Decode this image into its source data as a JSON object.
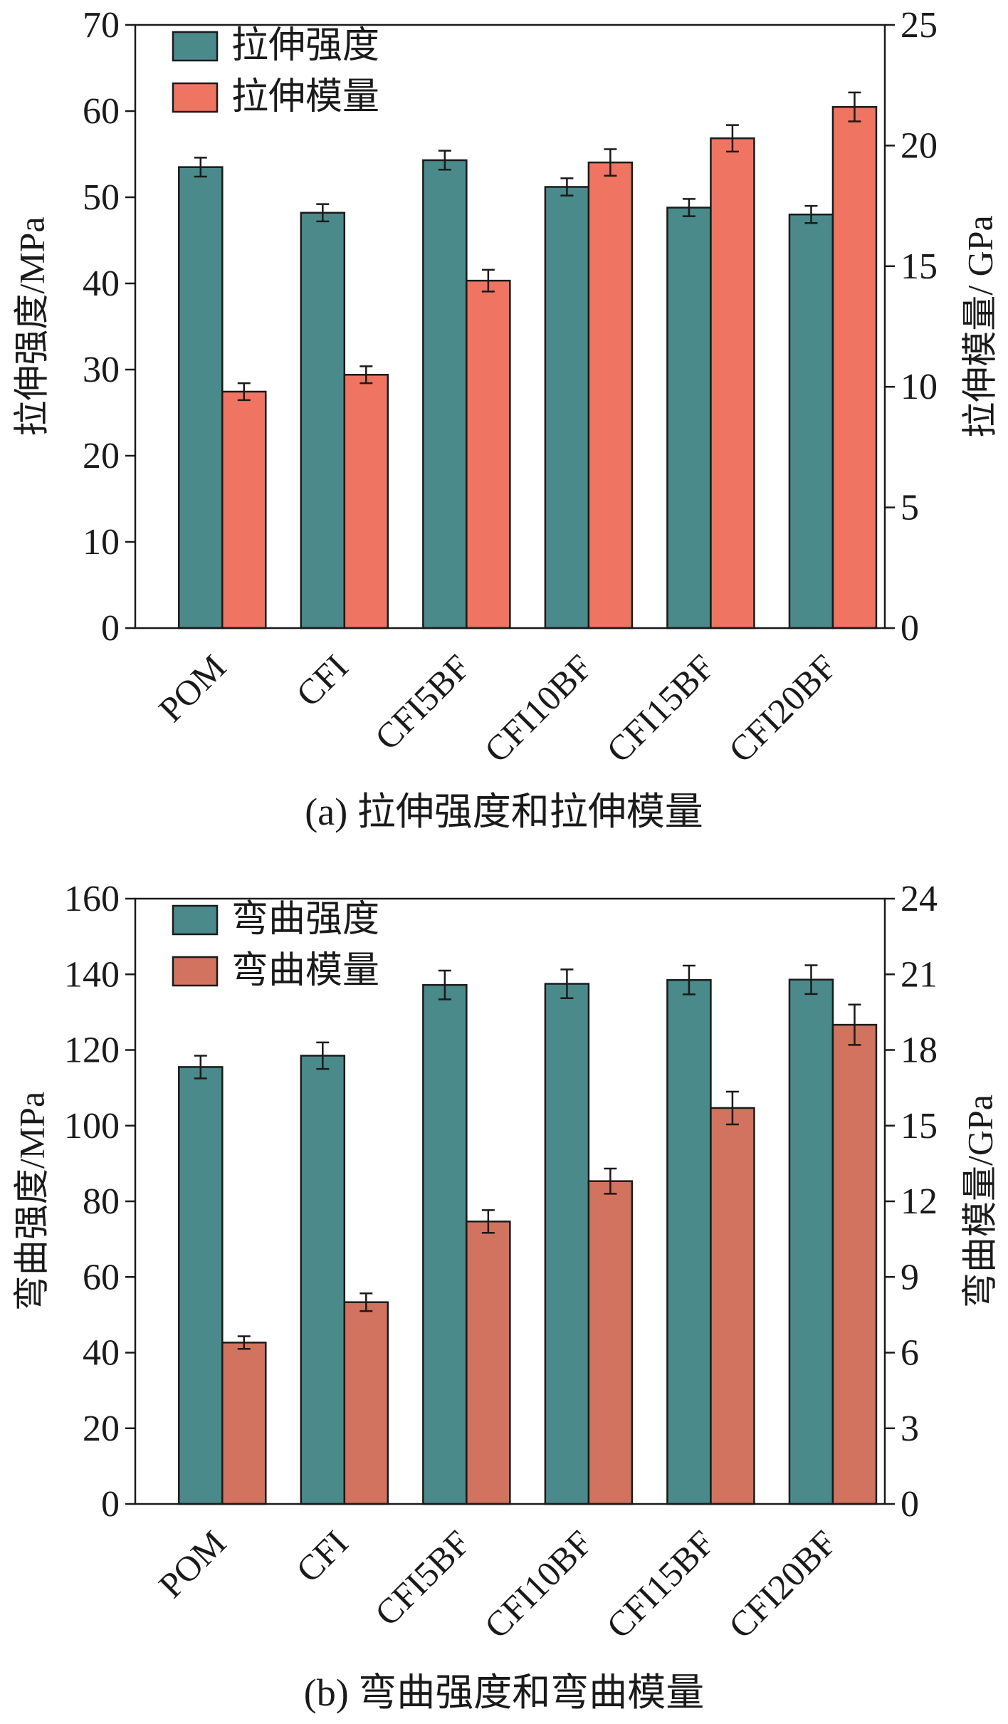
{
  "chart_data": [
    {
      "type": "bar",
      "caption": "(a) 拉伸强度和拉伸模量",
      "categories": [
        "POM",
        "CFI",
        "CFI5BF",
        "CFI10BF",
        "CFI15BF",
        "CFI20BF"
      ],
      "ylabel_left": "拉伸强度/MPa",
      "ylabel_right": "拉伸模量/ GPa",
      "ylim_left": [
        0,
        70
      ],
      "yticks_left": [
        0,
        10,
        20,
        30,
        40,
        50,
        60,
        70
      ],
      "ylim_right": [
        0,
        25
      ],
      "yticks_right": [
        0,
        5,
        10,
        15,
        20,
        25
      ],
      "legend_position": "top-left",
      "series": [
        {
          "name": "拉伸强度",
          "axis": "left",
          "color": "#4a8a8a",
          "values": [
            53.5,
            48.2,
            54.3,
            51.2,
            48.8,
            48.0
          ],
          "errors": [
            1.1,
            1.0,
            1.1,
            1.0,
            1.0,
            1.0
          ]
        },
        {
          "name": "拉伸模量",
          "axis": "right",
          "color": "#ef7562",
          "values": [
            9.8,
            10.5,
            14.4,
            19.3,
            20.3,
            21.6
          ],
          "errors": [
            0.35,
            0.35,
            0.45,
            0.55,
            0.55,
            0.6
          ]
        }
      ]
    },
    {
      "type": "bar",
      "caption": "(b) 弯曲强度和弯曲模量",
      "categories": [
        "POM",
        "CFI",
        "CFI5BF",
        "CFI10BF",
        "CFI15BF",
        "CFI20BF"
      ],
      "ylabel_left": "弯曲强度/MPa",
      "ylabel_right": "弯曲模量/GPa",
      "ylim_left": [
        0,
        160
      ],
      "yticks_left": [
        0,
        20,
        40,
        60,
        80,
        100,
        120,
        140,
        160
      ],
      "ylim_right": [
        0,
        24
      ],
      "yticks_right": [
        0,
        3,
        6,
        9,
        12,
        15,
        18,
        21,
        24
      ],
      "legend_position": "top-left",
      "series": [
        {
          "name": "弯曲强度",
          "axis": "left",
          "color": "#4a8a8a",
          "values": [
            115.5,
            118.5,
            137.2,
            137.5,
            138.5,
            138.6
          ],
          "errors": [
            3.0,
            3.5,
            3.8,
            3.8,
            3.8,
            3.8
          ]
        },
        {
          "name": "弯曲模量",
          "axis": "right",
          "color": "#d2735f",
          "values": [
            6.4,
            8.0,
            11.2,
            12.8,
            15.7,
            19.0
          ],
          "errors": [
            0.25,
            0.35,
            0.45,
            0.5,
            0.65,
            0.8
          ]
        }
      ]
    }
  ]
}
